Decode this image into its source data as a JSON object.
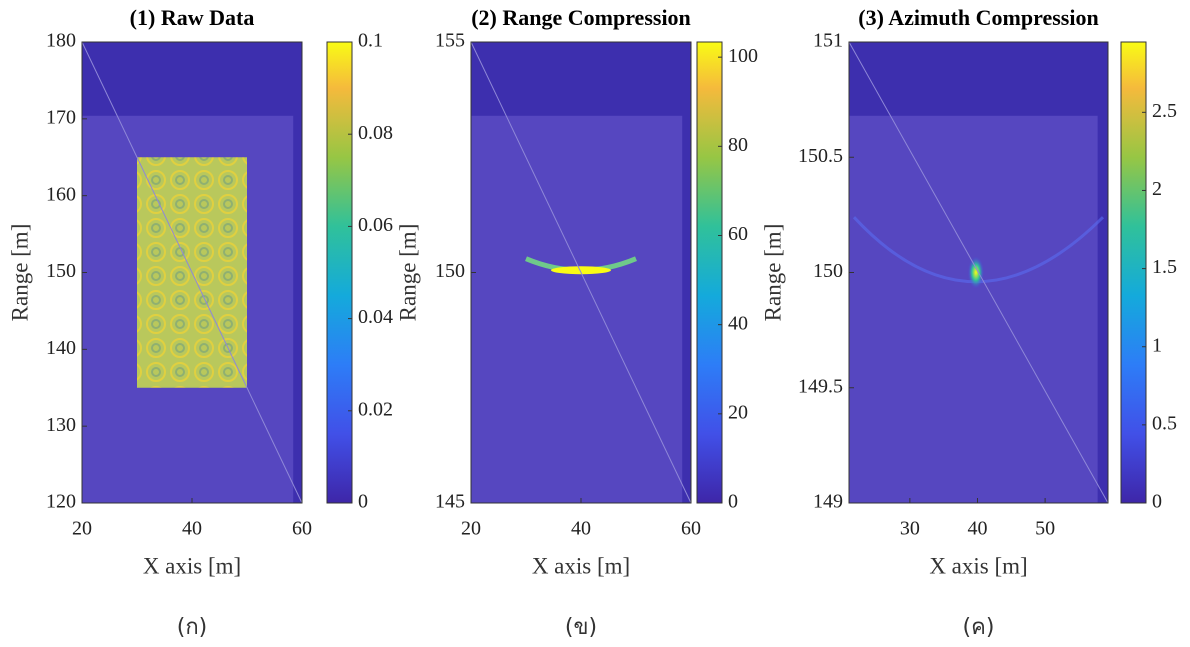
{
  "chart_data": [
    {
      "type": "heatmap",
      "title": "(1) Raw Data",
      "x_label": "X axis [m]",
      "y_label": "Range [m]",
      "xlim": [
        20,
        60
      ],
      "ylim": [
        120,
        180
      ],
      "xticks": [
        20,
        40,
        60
      ],
      "yticks": [
        120,
        130,
        140,
        150,
        160,
        170,
        180
      ],
      "clim": [
        0,
        0.1
      ],
      "cticks": [
        0,
        0.02,
        0.04,
        0.06,
        0.08,
        0.1
      ],
      "caption": "(ก)"
    },
    {
      "type": "heatmap",
      "title": "(2) Range Compression",
      "x_label": "X axis [m]",
      "y_label": "Range [m]",
      "xlim": [
        20,
        60
      ],
      "ylim": [
        145,
        155
      ],
      "xticks": [
        20,
        40,
        60
      ],
      "yticks": [
        145,
        150,
        155
      ],
      "clim": [
        0,
        103.4
      ],
      "cticks": [
        0,
        20,
        40,
        60,
        80,
        100
      ],
      "caption": "(ข)"
    },
    {
      "type": "heatmap",
      "title": "(3) Azimuth Compression",
      "x_label": "X axis [m]",
      "y_label": "Range [m]",
      "xlim": [
        21,
        59.3
      ],
      "ylim": [
        149,
        151
      ],
      "xticks": [
        30,
        40,
        50
      ],
      "yticks": [
        149,
        149.5,
        150,
        150.5,
        151
      ],
      "clim": [
        0,
        2.95
      ],
      "cticks": [
        0,
        0.5,
        1,
        1.5,
        2,
        2.5
      ],
      "caption": "(ค)"
    }
  ]
}
